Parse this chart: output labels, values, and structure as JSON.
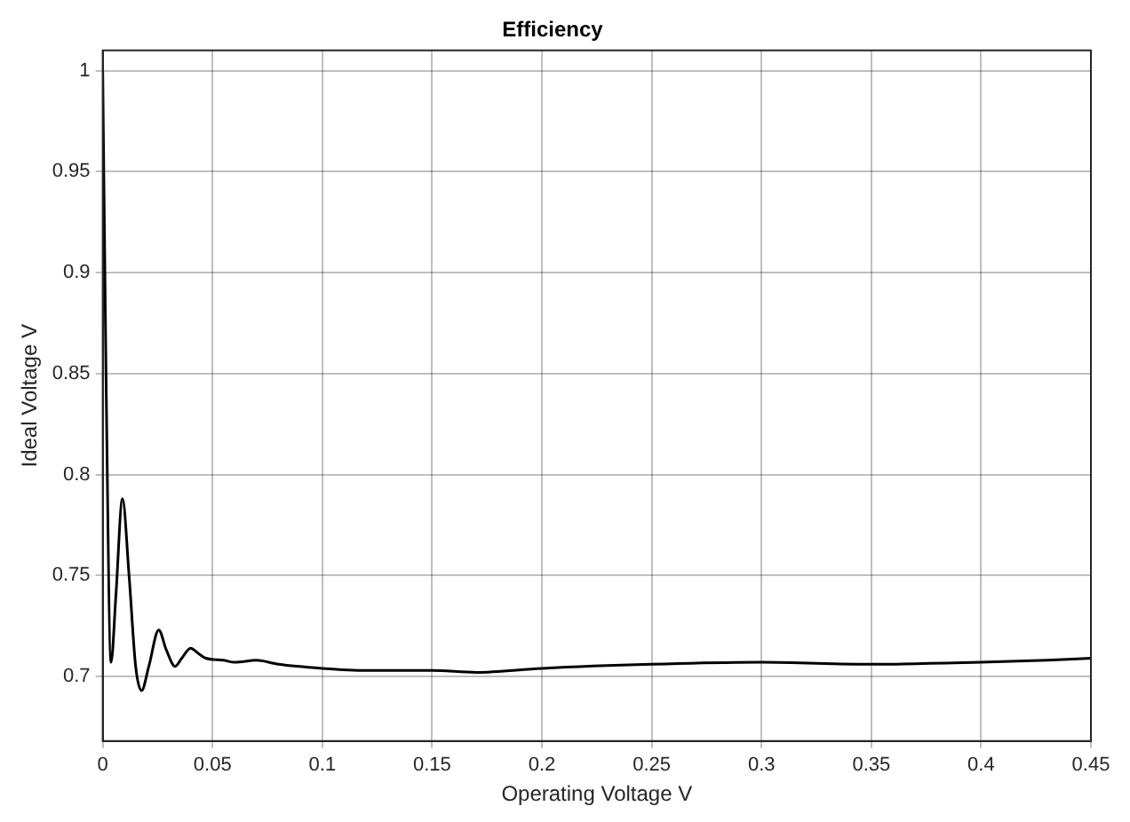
{
  "chart_data": {
    "type": "line",
    "title": "Efficiency",
    "xlabel": "Operating Voltage V",
    "ylabel": "Ideal Voltage V",
    "x": [
      0,
      0.0015,
      0.0038,
      0.006,
      0.009,
      0.012,
      0.015,
      0.0177,
      0.021,
      0.0255,
      0.029,
      0.033,
      0.036,
      0.04,
      0.044,
      0.047,
      0.055,
      0.06,
      0.07,
      0.08,
      0.1,
      0.12,
      0.15,
      0.17,
      0.2,
      0.25,
      0.3,
      0.35,
      0.4,
      0.43,
      0.45
    ],
    "series": [
      {
        "color": "#000000",
        "values": [
          1.0,
          0.85,
          0.707,
          0.74,
          0.788,
          0.75,
          0.705,
          0.693,
          0.705,
          0.723,
          0.713,
          0.705,
          0.709,
          0.714,
          0.711,
          0.709,
          0.708,
          0.707,
          0.708,
          0.706,
          0.704,
          0.703,
          0.703,
          0.702,
          0.704,
          0.706,
          0.707,
          0.706,
          0.707,
          0.708,
          0.709
        ]
      }
    ],
    "xlim": [
      0,
      0.45
    ],
    "ylim": [
      0.668,
      1.01
    ],
    "xticks": [
      0,
      0.05,
      0.1,
      0.15,
      0.2,
      0.25,
      0.3,
      0.35,
      0.4,
      0.45
    ],
    "yticks": [
      0.7,
      0.75,
      0.8,
      0.85,
      0.9,
      0.95,
      1
    ],
    "grid": true,
    "legend": false,
    "marker": "none",
    "line_style": "solid"
  }
}
